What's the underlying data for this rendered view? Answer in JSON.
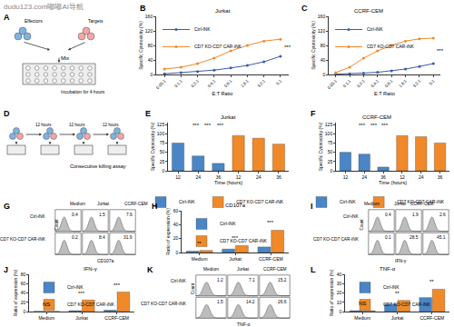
{
  "watermark": "dudu123.com嘟嘟AI导航",
  "diagrams": [
    {
      "panel": "A",
      "labels": {
        "effectors": "Effectors",
        "targets": "Targets",
        "mix": "Mix",
        "incubation": "Incubation for 4 hours"
      }
    },
    {
      "panel": "D",
      "title": "Consecutive killing assay",
      "interval_labels": [
        "12 hours",
        "12 hours",
        "12 hours"
      ]
    }
  ],
  "chart_data": [
    {
      "panel": "B",
      "type": "line",
      "title": "Jurkat",
      "x_label": "E:T Ratio",
      "y_label": "Specific Cytotoxicity (%)",
      "categories": [
        "0.05:1",
        "0.1:1",
        "0.2:1",
        "0.4:1",
        "0.8:1",
        "1.6:1",
        "3.2:1",
        "5:1"
      ],
      "series": [
        {
          "name": "Ctrl-iNK",
          "color": "#3b5ba9",
          "values": [
            2,
            5,
            8,
            12,
            18,
            25,
            35,
            50
          ]
        },
        {
          "name": "CD7 KO-CD7 CAR-iNK",
          "color": "#f0892a",
          "values": [
            15,
            20,
            30,
            45,
            65,
            80,
            92,
            97
          ]
        }
      ],
      "ylim": [
        0,
        160
      ],
      "yticks": [
        0,
        40,
        80,
        120,
        160
      ],
      "legend": "top left",
      "marker": "circle",
      "annotations": [
        {
          "x": 7,
          "y": 75,
          "text": "***"
        }
      ]
    },
    {
      "panel": "C",
      "type": "line",
      "title": "CCRF-CEM",
      "x_label": "E:T Ratio",
      "y_label": "Specific Cytotoxicity (%)",
      "categories": [
        "0.05:1",
        "0.1:1",
        "0.2:1",
        "0.4:1",
        "0.8:1",
        "1.6:1",
        "3.2:1",
        "5:1"
      ],
      "series": [
        {
          "name": "Ctrl-iNK",
          "color": "#3b5ba9",
          "values": [
            1,
            2,
            4,
            6,
            10,
            15,
            22,
            30
          ]
        },
        {
          "name": "CD7 KO-CD7 CAR-iNK",
          "color": "#f0892a",
          "values": [
            5,
            20,
            45,
            65,
            80,
            92,
            98,
            100
          ]
        }
      ],
      "ylim": [
        0,
        160
      ],
      "yticks": [
        0,
        40,
        80,
        120,
        160
      ],
      "legend": "top left",
      "marker": "circle",
      "annotations": [
        {
          "x": 7,
          "y": 65,
          "text": "***"
        }
      ]
    },
    {
      "panel": "E",
      "type": "bar",
      "title": "Jurkat",
      "x_label": "Time (hours)",
      "y_label": "Specific Cytotoxicity (%)",
      "categories": [
        "12",
        "24",
        "36",
        "12",
        "24",
        "36"
      ],
      "series": [
        {
          "name": "Ctrl-iNK",
          "color": "#4a86c5",
          "values": [
            75,
            40,
            20,
            null,
            null,
            null
          ]
        },
        {
          "name": "CD7 KO-CD7 CAR-iNK",
          "color": "#f0892a",
          "values": [
            null,
            null,
            null,
            95,
            88,
            72
          ]
        }
      ],
      "ylim": [
        0,
        130
      ],
      "yticks": [
        0,
        25,
        50,
        75,
        100,
        125
      ],
      "legend": "bottom",
      "annotations": [
        {
          "x": 0.9,
          "y": 110,
          "text": "***"
        },
        {
          "x": 1.5,
          "y": 110,
          "text": "***"
        },
        {
          "x": 2.1,
          "y": 110,
          "text": "***"
        }
      ]
    },
    {
      "panel": "F",
      "type": "bar",
      "title": "CCRF-CEM",
      "x_label": "Time (hours)",
      "y_label": "Specific Cytotoxicity (%)",
      "categories": [
        "12",
        "24",
        "36",
        "12",
        "24",
        "36"
      ],
      "series": [
        {
          "name": "Ctrl-iNK",
          "color": "#4a86c5",
          "values": [
            50,
            45,
            10,
            null,
            null,
            null
          ]
        },
        {
          "name": "CD7 KO-CD7 CAR-iNK",
          "color": "#f0892a",
          "values": [
            null,
            null,
            null,
            95,
            92,
            75
          ]
        }
      ],
      "ylim": [
        0,
        130
      ],
      "yticks": [
        0,
        25,
        50,
        75,
        100,
        125
      ],
      "legend": "bottom",
      "annotations": [
        {
          "x": 0.9,
          "y": 110,
          "text": "***"
        },
        {
          "x": 1.5,
          "y": 110,
          "text": "***"
        },
        {
          "x": 2.1,
          "y": 110,
          "text": "***"
        }
      ]
    },
    {
      "panel": "H",
      "type": "bar",
      "title": "CD107a",
      "y_label": "Ratio of expression (%)",
      "categories": [
        "Medium",
        "Jurkat",
        "CCRF-CEM"
      ],
      "series": [
        {
          "name": "Ctrl-iNK",
          "color": "#4a86c5",
          "values": [
            2,
            5,
            8
          ]
        },
        {
          "name": "CD7 KO-CD7 CAR-iNK",
          "color": "#f0892a",
          "values": [
            3,
            10,
            32
          ]
        }
      ],
      "ylim": [
        0,
        60
      ],
      "yticks": [
        0,
        20,
        40,
        60
      ],
      "legend": "top left",
      "annotations": [
        {
          "x": 0,
          "y": 6,
          "text": "**"
        },
        {
          "x": 1,
          "y": 14,
          "text": "***"
        },
        {
          "x": 2,
          "y": 36,
          "text": "***"
        }
      ]
    },
    {
      "panel": "J",
      "type": "bar",
      "title": "IFN-γ",
      "y_label": "Ratio of expression (%)",
      "categories": [
        "Medium",
        "Jurkat",
        "CCRF-CEM"
      ],
      "series": [
        {
          "name": "Ctrl-iNK",
          "color": "#4a86c5",
          "values": [
            0.5,
            2,
            3
          ]
        },
        {
          "name": "CD7 KO-CD7 CAR-iNK",
          "color": "#f0892a",
          "values": [
            0.5,
            25,
            42
          ]
        }
      ],
      "ylim": [
        0,
        80
      ],
      "yticks": [
        0,
        20,
        40,
        60,
        80
      ],
      "legend": "top left",
      "annotations": [
        {
          "x": 0,
          "y": 5,
          "text": "NS"
        },
        {
          "x": 1,
          "y": 29,
          "text": "***"
        },
        {
          "x": 2,
          "y": 46,
          "text": "***"
        }
      ]
    },
    {
      "panel": "L",
      "type": "bar",
      "title": "TNF-α",
      "y_label": "Ratio of expression (%)",
      "categories": [
        "Medium",
        "Jurkat",
        "CCRF-CEM"
      ],
      "series": [
        {
          "name": "Ctrl-iNK",
          "color": "#4a86c5",
          "values": [
            1,
            8,
            15
          ]
        },
        {
          "name": "CD7 KO-CD7 CAR-iNK",
          "color": "#f0892a",
          "values": [
            1,
            12,
            24
          ]
        }
      ],
      "ylim": [
        0,
        40
      ],
      "yticks": [
        0,
        10,
        20,
        30,
        40
      ],
      "legend": "top left",
      "annotations": [
        {
          "x": 0,
          "y": 4,
          "text": "NS"
        },
        {
          "x": 1,
          "y": 15,
          "text": "**"
        },
        {
          "x": 2,
          "y": 27,
          "text": "**"
        }
      ]
    }
  ],
  "flow_panels": [
    {
      "panel": "G",
      "marker": "CD107a",
      "y_label": "Count",
      "columns": [
        "Medium",
        "Jurkat",
        "CCRF-CEM"
      ],
      "rows": [
        {
          "name": "Ctrl-iNK",
          "values": [
            0.4,
            1.5,
            7.6
          ]
        },
        {
          "name": "CD7 KO-CD7 CAR-iNK",
          "values": [
            0.2,
            8.4,
            31.9
          ]
        }
      ]
    },
    {
      "panel": "I",
      "marker": "IFN-γ",
      "y_label": "Count",
      "columns": [
        "Medium",
        "Jurkat",
        "CCRF-CEM"
      ],
      "rows": [
        {
          "name": "Ctrl-iNK",
          "values": [
            0.4,
            1.9,
            2.6
          ]
        },
        {
          "name": "CD7 KO-CD7 CAR-iNK",
          "values": [
            0.1,
            28.5,
            45.1
          ]
        }
      ]
    },
    {
      "panel": "K",
      "marker": "TNF-α",
      "y_label": "Count",
      "columns": [
        "Medium",
        "Jurkat",
        "CCRF-CEM"
      ],
      "rows": [
        {
          "name": "Ctrl-iNK",
          "values": [
            1.2,
            7.1,
            15.2
          ]
        },
        {
          "name": "CD7 KO-CD7 CAR-iNK",
          "values": [
            1.5,
            14.2,
            26.6
          ]
        }
      ]
    }
  ]
}
